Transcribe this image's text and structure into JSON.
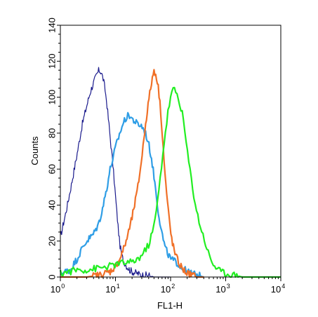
{
  "chart_data": {
    "type": "line",
    "xlabel": "FL1-H",
    "ylabel": "Counts",
    "x_scale": "log",
    "xlim": [
      1,
      10000
    ],
    "ylim": [
      0,
      140
    ],
    "x_ticks": [
      {
        "value": 1,
        "base": "10",
        "exp": "0"
      },
      {
        "value": 10,
        "base": "10",
        "exp": "1"
      },
      {
        "value": 100,
        "base": "10",
        "exp": "2"
      },
      {
        "value": 1000,
        "base": "10",
        "exp": "3"
      },
      {
        "value": 10000,
        "base": "10",
        "exp": "4"
      }
    ],
    "y_ticks": [
      "0",
      "20",
      "40",
      "60",
      "80",
      "100",
      "120",
      "140"
    ],
    "grid": false,
    "series": [
      {
        "color": "#1a1a8c",
        "stroke": 1.2,
        "x": [
          1.0,
          1.3,
          1.6,
          2.0,
          2.5,
          3.0,
          3.5,
          4.0,
          4.5,
          5.0,
          5.5,
          6.0,
          6.5,
          7.0,
          8.0,
          9.0,
          10.0,
          11.0,
          12.0,
          13.0,
          14.0,
          16.0,
          18.0,
          20.0,
          25.0,
          30.0,
          40.0,
          50.0,
          70.0,
          100.0
        ],
        "y": [
          22,
          38,
          52,
          68,
          85,
          95,
          103,
          108,
          112,
          115,
          114,
          110,
          104,
          96,
          78,
          62,
          45,
          30,
          18,
          12,
          9,
          6,
          4,
          3,
          2,
          1,
          1,
          0,
          0,
          0
        ]
      },
      {
        "color": "#2f9ee6",
        "stroke": 2.2,
        "x": [
          1.0,
          1.5,
          2.0,
          2.5,
          3.0,
          4.0,
          5.0,
          6.0,
          7.0,
          8.0,
          9.0,
          10.0,
          12.0,
          14.0,
          16.0,
          18.0,
          20.0,
          25.0,
          30.0,
          35.0,
          40.0,
          45.0,
          50.0,
          55.0,
          60.0,
          70.0,
          80.0,
          100.0,
          130.0,
          160.0,
          200.0,
          300.0,
          400.0
        ],
        "y": [
          2,
          4,
          10,
          16,
          20,
          24,
          30,
          40,
          50,
          60,
          66,
          72,
          80,
          86,
          89,
          90,
          88,
          85,
          84,
          80,
          74,
          66,
          56,
          46,
          36,
          24,
          16,
          10,
          8,
          5,
          3,
          1,
          0
        ]
      },
      {
        "color": "#f07028",
        "stroke": 2.2,
        "x": [
          1.0,
          3.0,
          5.0,
          8.0,
          10.0,
          12.0,
          15.0,
          18.0,
          20.0,
          25.0,
          30.0,
          35.0,
          40.0,
          45.0,
          50.0,
          55.0,
          60.0,
          65.0,
          70.0,
          75.0,
          80.0,
          90.0,
          100.0,
          110.0,
          120.0,
          140.0,
          160.0,
          200.0,
          250.0,
          300.0,
          400.0
        ],
        "y": [
          0,
          0,
          1,
          3,
          6,
          10,
          18,
          27,
          33,
          48,
          66,
          85,
          98,
          108,
          115,
          112,
          105,
          95,
          82,
          68,
          55,
          38,
          25,
          18,
          13,
          8,
          5,
          2,
          1,
          0,
          0
        ]
      },
      {
        "color": "#22ee22",
        "stroke": 2.2,
        "x": [
          1.0,
          2.0,
          3.0,
          5.0,
          8.0,
          10.0,
          15.0,
          20.0,
          25.0,
          30.0,
          40.0,
          50.0,
          60.0,
          70.0,
          80.0,
          90.0,
          100.0,
          110.0,
          120.0,
          130.0,
          140.0,
          150.0,
          170.0,
          200.0,
          250.0,
          300.0,
          350.0,
          400.0,
          500.0,
          600.0,
          800.0,
          1000.0,
          1500.0,
          2000.0,
          3000.0,
          5000.0,
          10000.0
        ],
        "y": [
          2,
          4,
          4,
          5,
          6,
          7,
          8,
          8,
          10,
          12,
          18,
          28,
          45,
          65,
          80,
          92,
          100,
          104,
          104,
          102,
          98,
          96,
          88,
          70,
          50,
          36,
          28,
          22,
          12,
          7,
          3,
          2,
          1,
          0,
          0,
          0,
          0
        ]
      }
    ]
  }
}
